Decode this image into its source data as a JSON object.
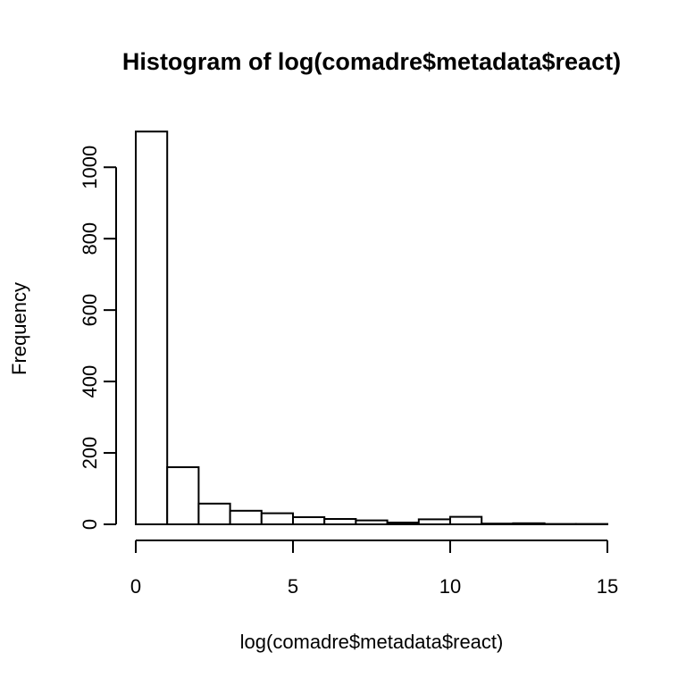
{
  "chart_data": {
    "type": "bar",
    "title": "Histogram of log(comadre$metadata$react)",
    "xlabel": "log(comadre$metadata$react)",
    "ylabel": "Frequency",
    "bins": [
      {
        "x0": 0,
        "x1": 1,
        "count": 1100
      },
      {
        "x0": 1,
        "x1": 2,
        "count": 160
      },
      {
        "x0": 2,
        "x1": 3,
        "count": 58
      },
      {
        "x0": 3,
        "x1": 4,
        "count": 38
      },
      {
        "x0": 4,
        "x1": 5,
        "count": 31
      },
      {
        "x0": 5,
        "x1": 6,
        "count": 20
      },
      {
        "x0": 6,
        "x1": 7,
        "count": 15
      },
      {
        "x0": 7,
        "x1": 8,
        "count": 11
      },
      {
        "x0": 8,
        "x1": 9,
        "count": 5
      },
      {
        "x0": 9,
        "x1": 10,
        "count": 14
      },
      {
        "x0": 10,
        "x1": 11,
        "count": 21
      },
      {
        "x0": 11,
        "x1": 12,
        "count": 2
      },
      {
        "x0": 12,
        "x1": 13,
        "count": 3
      },
      {
        "x0": 13,
        "x1": 14,
        "count": 1
      },
      {
        "x0": 14,
        "x1": 15,
        "count": 1
      }
    ],
    "xlim": [
      0,
      15
    ],
    "ylim": [
      0,
      1100
    ],
    "x_ticks": [
      0,
      5,
      10,
      15
    ],
    "y_ticks": [
      0,
      200,
      400,
      600,
      800,
      1000
    ],
    "x_tick_labels": [
      "0",
      "5",
      "10",
      "15"
    ],
    "y_tick_labels": [
      "0",
      "200",
      "400",
      "600",
      "800",
      "1000"
    ],
    "grid": false,
    "legend": "none",
    "colors": {
      "bar_fill": "#ffffff",
      "bar_stroke": "#000000",
      "axis": "#000000",
      "text": "#000000"
    }
  }
}
